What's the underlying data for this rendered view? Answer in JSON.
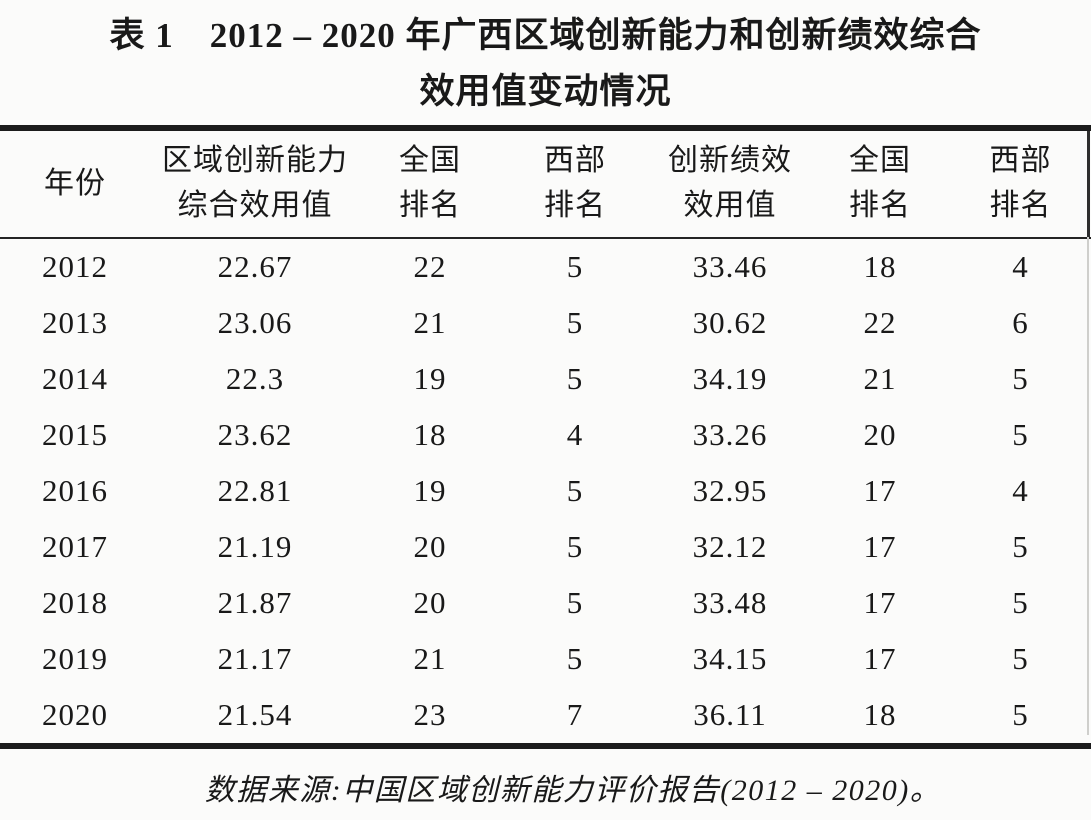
{
  "page": {
    "background": "#fbfbfa",
    "text_color": "#191919",
    "rule_color": "#1c1c1c"
  },
  "table": {
    "caption_line1": "表 1　2012 – 2020 年广西区域创新能力和创新绩效综合",
    "caption_line2": "效用值变动情况",
    "columns": [
      {
        "id": "year",
        "line1": "年份",
        "line2": ""
      },
      {
        "id": "regional-innovation-capability-composite-utility",
        "line1": "区域创新能力",
        "line2": "综合效用值"
      },
      {
        "id": "national-rank-capability",
        "line1": "全国",
        "line2": "排名"
      },
      {
        "id": "western-rank-capability",
        "line1": "西部",
        "line2": "排名"
      },
      {
        "id": "innovation-performance-utility",
        "line1": "创新绩效",
        "line2": "效用值"
      },
      {
        "id": "national-rank-performance",
        "line1": "全国",
        "line2": "排名"
      },
      {
        "id": "western-rank-performance",
        "line1": "西部",
        "line2": "排名"
      }
    ],
    "rows": [
      [
        "2012",
        "22.67",
        "22",
        "5",
        "33.46",
        "18",
        "4"
      ],
      [
        "2013",
        "23.06",
        "21",
        "5",
        "30.62",
        "22",
        "6"
      ],
      [
        "2014",
        "22.3",
        "19",
        "5",
        "34.19",
        "21",
        "5"
      ],
      [
        "2015",
        "23.62",
        "18",
        "4",
        "33.26",
        "20",
        "5"
      ],
      [
        "2016",
        "22.81",
        "19",
        "5",
        "32.95",
        "17",
        "4"
      ],
      [
        "2017",
        "21.19",
        "20",
        "5",
        "32.12",
        "17",
        "5"
      ],
      [
        "2018",
        "21.87",
        "20",
        "5",
        "33.48",
        "17",
        "5"
      ],
      [
        "2019",
        "21.17",
        "21",
        "5",
        "34.15",
        "17",
        "5"
      ],
      [
        "2020",
        "21.54",
        "23",
        "7",
        "36.11",
        "18",
        "5"
      ]
    ],
    "source_note": "数据来源:中国区域创新能力评价报告(2012 – 2020)。"
  }
}
